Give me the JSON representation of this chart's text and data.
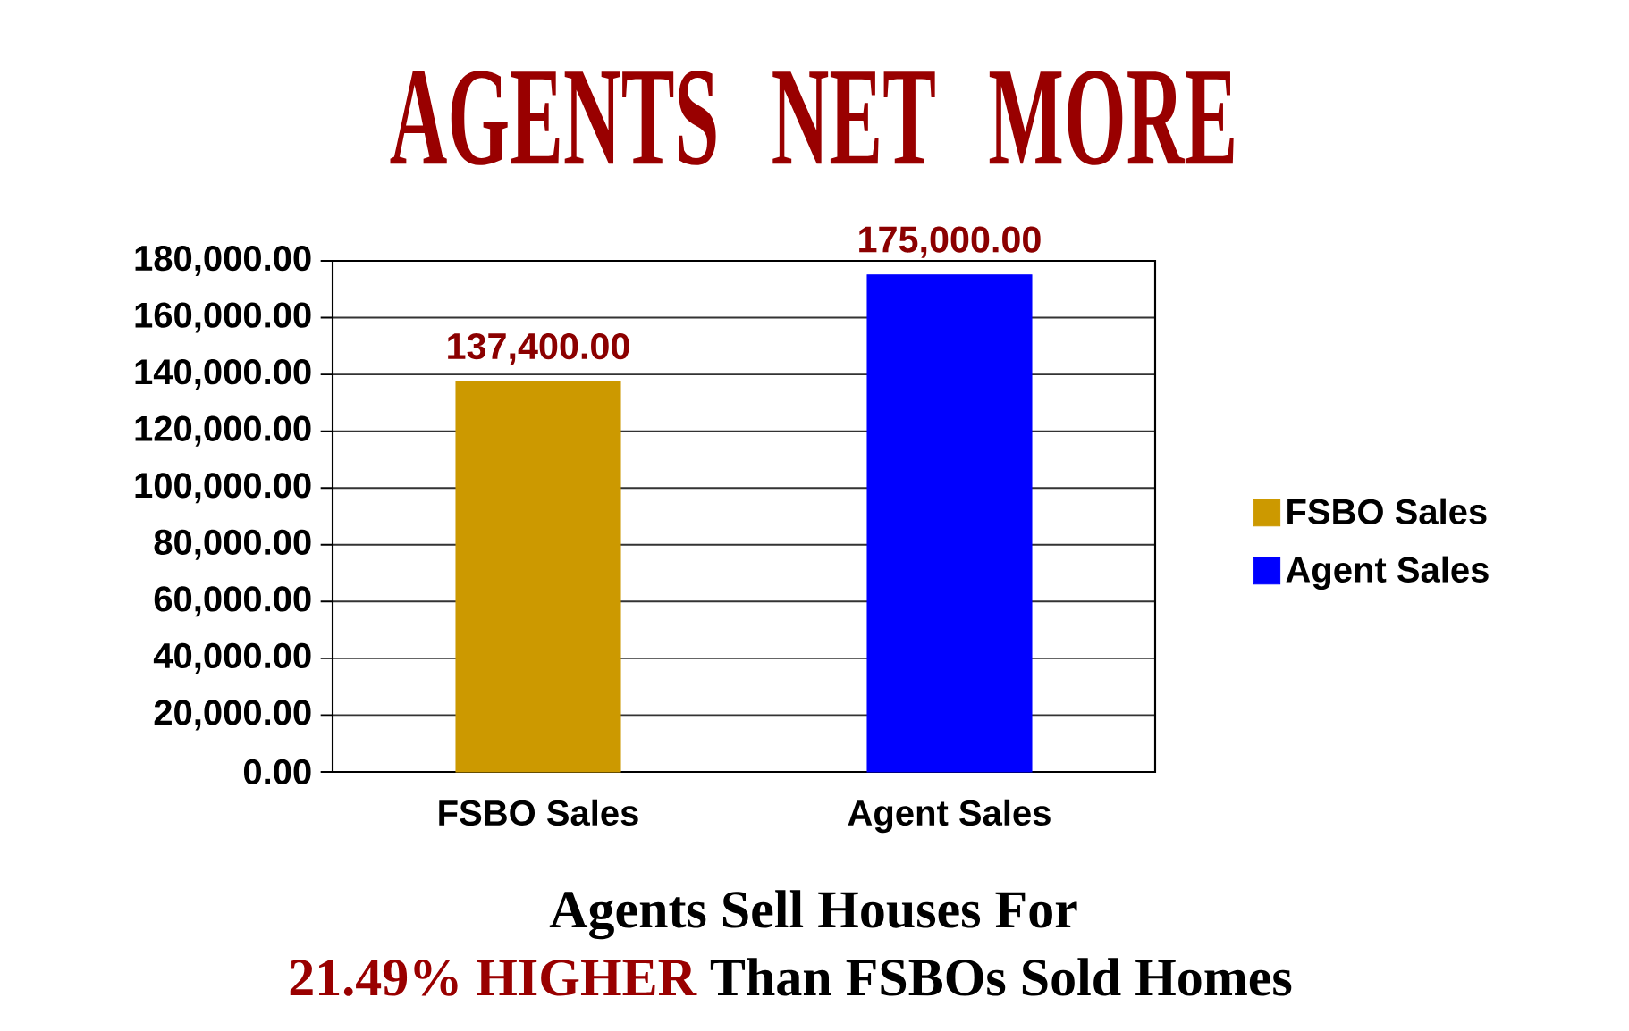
{
  "chart_data": {
    "type": "bar",
    "title": "AGENTS NET MORE",
    "categories": [
      "FSBO Sales",
      "Agent Sales"
    ],
    "series": [
      {
        "name": "FSBO Sales",
        "color": "#cc9900",
        "values": [
          137400,
          null
        ],
        "value_labels": [
          "137,400.00",
          null
        ]
      },
      {
        "name": "Agent Sales",
        "color": "#0000ff",
        "values": [
          null,
          175000
        ],
        "value_labels": [
          null,
          "175,000.00"
        ]
      }
    ],
    "ylim": [
      0,
      180000
    ],
    "yticks": [
      {
        "value": 0,
        "label": "0.00"
      },
      {
        "value": 20000,
        "label": "20,000.00"
      },
      {
        "value": 40000,
        "label": "40,000.00"
      },
      {
        "value": 60000,
        "label": "60,000.00"
      },
      {
        "value": 80000,
        "label": "80,000.00"
      },
      {
        "value": 100000,
        "label": "100,000.00"
      },
      {
        "value": 120000,
        "label": "120,000.00"
      },
      {
        "value": 140000,
        "label": "140,000.00"
      },
      {
        "value": 160000,
        "label": "160,000.00"
      },
      {
        "value": 180000,
        "label": "180,000.00"
      }
    ],
    "grid": "y",
    "legend": "right",
    "annotations": [
      "Agents Sell Houses For",
      "21.49% HIGHER",
      "Than FSBOs Sold Homes"
    ]
  }
}
